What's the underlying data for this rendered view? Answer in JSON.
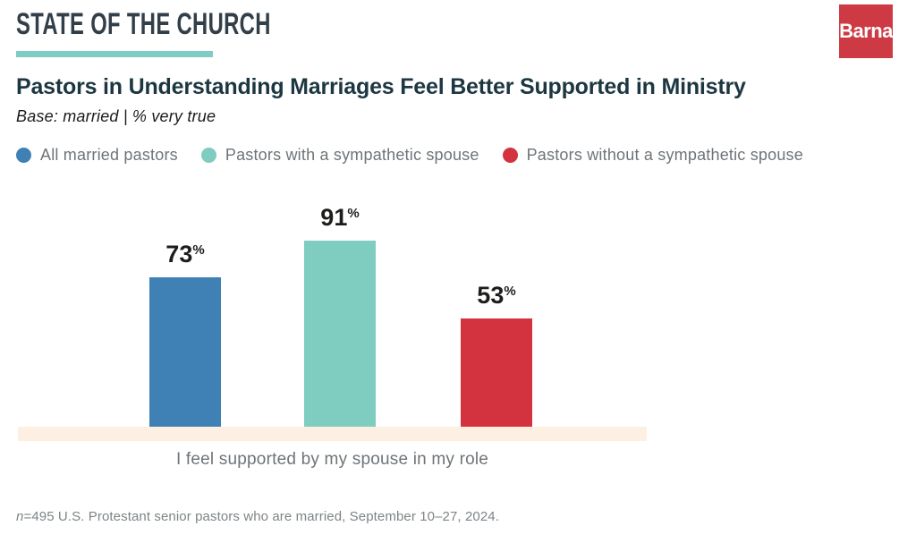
{
  "header": {
    "brand": "STATE OF THE CHURCH",
    "logo_text": "Barna"
  },
  "title": "Pastors in Understanding Marriages Feel Better Supported in Ministry",
  "subtitle": "Base: married  |  % very true",
  "chart_data": {
    "type": "bar",
    "categories": [
      "I feel supported by my spouse in my role"
    ],
    "series": [
      {
        "name": "All married pastors",
        "value": 73,
        "color": "#3f81b5"
      },
      {
        "name": "Pastors with a sympathetic spouse",
        "value": 91,
        "color": "#7fccc1"
      },
      {
        "name": "Pastors without a sympathetic spouse",
        "value": 53,
        "color": "#d2333e"
      }
    ],
    "unit": "%",
    "ylim": [
      0,
      100
    ],
    "grid": false,
    "legend_position": "top"
  },
  "footnote": {
    "n_prefix": "n",
    "rest": "=495 U.S. Protestant senior pastors who are married, September 10–27, 2024."
  },
  "colors": {
    "brand_text": "#333f48",
    "brand_underline": "#7fccc4",
    "logo_bg": "#cd3a43",
    "title_text": "#1d3742",
    "legend_text": "#6f7478",
    "baseline_strip": "#fdf0e3",
    "value_text": "#1d1d1b"
  }
}
